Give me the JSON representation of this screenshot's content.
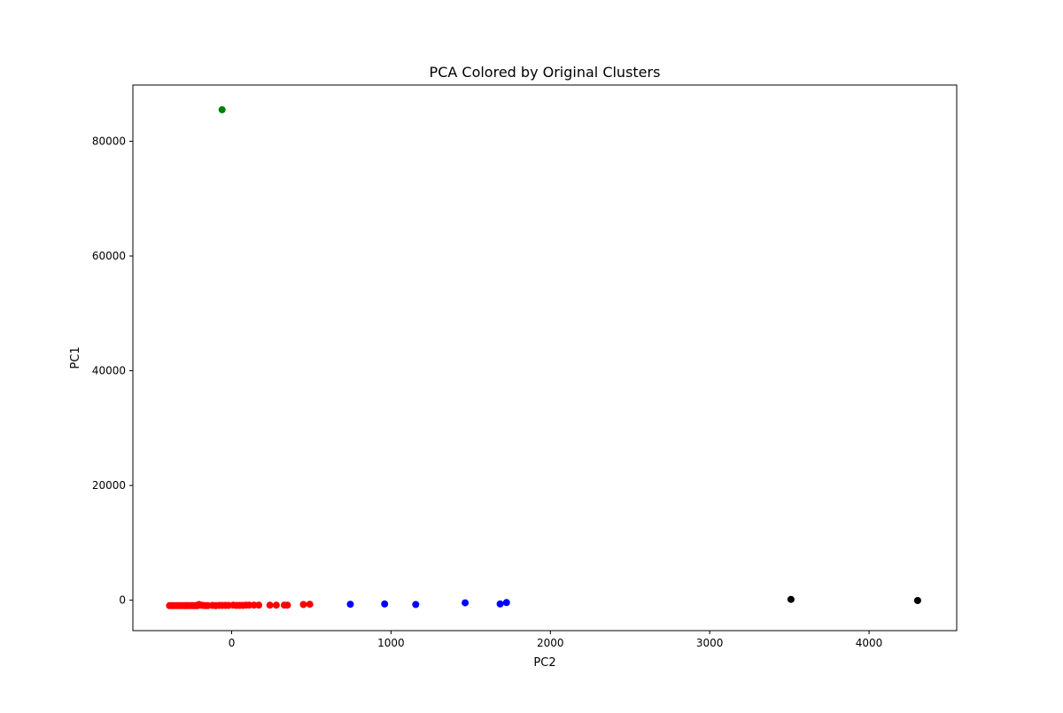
{
  "chart_data": {
    "type": "scatter",
    "title": "PCA Colored by Original Clusters",
    "xlabel": "PC2",
    "ylabel": "PC1",
    "xlim": [
      -620,
      4550
    ],
    "ylim": [
      -5300,
      89800
    ],
    "xticks": [
      0,
      1000,
      2000,
      3000,
      4000
    ],
    "yticks": [
      0,
      20000,
      40000,
      60000,
      80000
    ],
    "grid": false,
    "legend": "none",
    "series": [
      {
        "color": "#ff0000",
        "points": [
          [
            -390,
            -950
          ],
          [
            -375,
            -950
          ],
          [
            -360,
            -950
          ],
          [
            -345,
            -950
          ],
          [
            -330,
            -950
          ],
          [
            -315,
            -950
          ],
          [
            -300,
            -950
          ],
          [
            -290,
            -950
          ],
          [
            -280,
            -950
          ],
          [
            -270,
            -950
          ],
          [
            -255,
            -950
          ],
          [
            -245,
            -950
          ],
          [
            -235,
            -950
          ],
          [
            -225,
            -950
          ],
          [
            -215,
            -950
          ],
          [
            -205,
            -750
          ],
          [
            -195,
            -850
          ],
          [
            -180,
            -900
          ],
          [
            -165,
            -950
          ],
          [
            -150,
            -950
          ],
          [
            -120,
            -900
          ],
          [
            -100,
            -950
          ],
          [
            -80,
            -900
          ],
          [
            -60,
            -900
          ],
          [
            -40,
            -900
          ],
          [
            -20,
            -900
          ],
          [
            10,
            -850
          ],
          [
            30,
            -900
          ],
          [
            50,
            -900
          ],
          [
            70,
            -900
          ],
          [
            90,
            -850
          ],
          [
            110,
            -850
          ],
          [
            140,
            -850
          ],
          [
            170,
            -850
          ],
          [
            240,
            -850
          ],
          [
            280,
            -850
          ],
          [
            330,
            -850
          ],
          [
            350,
            -850
          ],
          [
            450,
            -750
          ],
          [
            490,
            -700
          ]
        ]
      },
      {
        "color": "#0000ff",
        "points": [
          [
            745,
            -700
          ],
          [
            960,
            -650
          ],
          [
            1155,
            -750
          ],
          [
            1465,
            -450
          ],
          [
            1685,
            -650
          ],
          [
            1725,
            -400
          ]
        ]
      },
      {
        "color": "#008000",
        "points": [
          [
            -60,
            85500
          ]
        ]
      },
      {
        "color": "#000000",
        "points": [
          [
            3510,
            150
          ],
          [
            4305,
            -50
          ]
        ]
      }
    ]
  }
}
